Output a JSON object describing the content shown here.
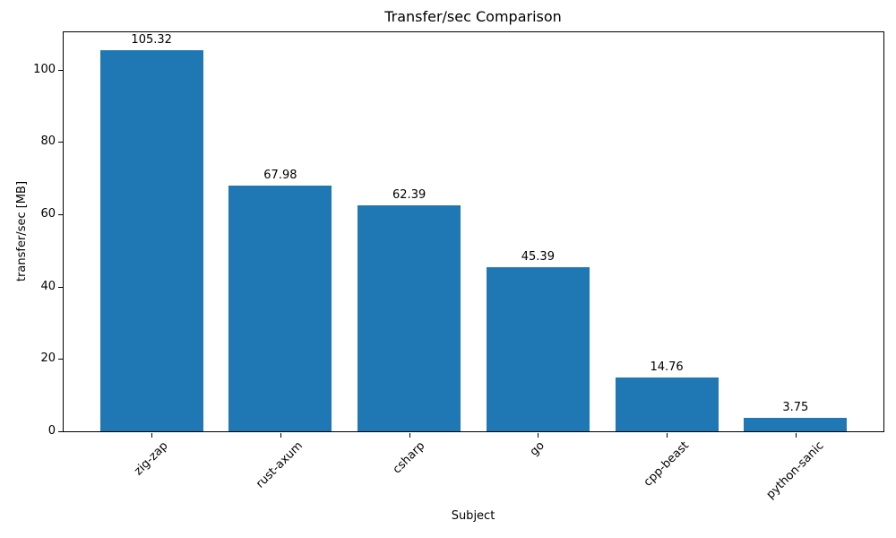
{
  "chart_data": {
    "type": "bar",
    "title": "Transfer/sec Comparison",
    "xlabel": "Subject",
    "ylabel": "transfer/sec [MB]",
    "categories": [
      "zig-zap",
      "rust-axum",
      "csharp",
      "go",
      "cpp-beast",
      "python-sanic"
    ],
    "values": [
      105.32,
      67.98,
      62.39,
      45.39,
      14.76,
      3.75
    ],
    "bar_labels": [
      "105.32",
      "67.98",
      "62.39",
      "45.39",
      "14.76",
      "3.75"
    ],
    "yticks": [
      0,
      20,
      40,
      60,
      80,
      100
    ],
    "ylim": [
      0,
      110.8
    ],
    "xlim": [
      -0.69,
      5.69
    ],
    "bar_color": "#1f77b4",
    "grid": false,
    "legend": "none",
    "x_tick_rotation": 45
  }
}
